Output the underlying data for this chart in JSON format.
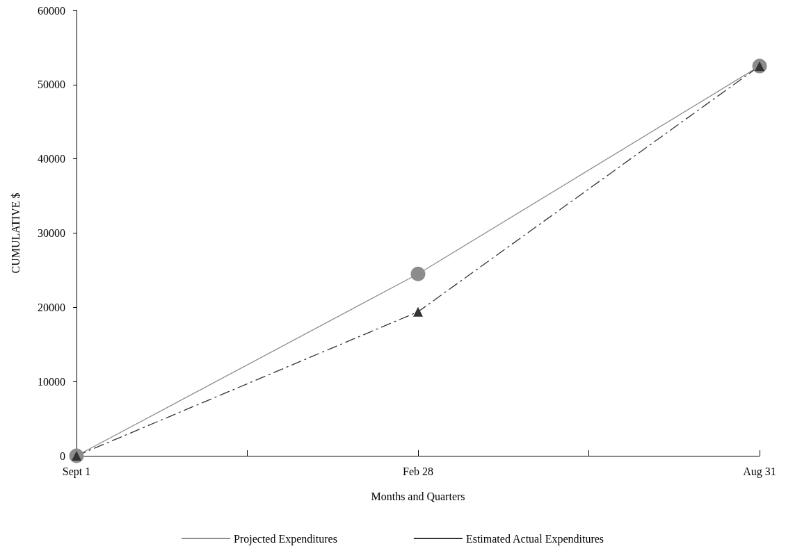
{
  "chart_data": {
    "type": "line",
    "xlabel": "Months and Quarters",
    "ylabel": "CUMULATIVE $",
    "categories": [
      "Sept 1",
      null,
      "Feb 28",
      null,
      "Aug 31"
    ],
    "ylim": [
      0,
      60000
    ],
    "yticks": [
      0,
      10000,
      20000,
      30000,
      40000,
      50000,
      60000
    ],
    "grid": false,
    "legend": "bottom",
    "series": [
      {
        "name": "Projected Expenditures",
        "color": "#8c8c8c",
        "x": [
          "Sept 1",
          "Feb 28",
          "Aug 31"
        ],
        "values": [
          0,
          24500,
          52500
        ],
        "marker": "circle",
        "line_style": "solid"
      },
      {
        "name": "Estimated Actual Expenditures",
        "color": "#333333",
        "x": [
          "Sept 1",
          "Feb 28",
          "Aug 31"
        ],
        "values": [
          0,
          19400,
          52500
        ],
        "marker": "triangle",
        "line_style": "dashed"
      }
    ]
  }
}
